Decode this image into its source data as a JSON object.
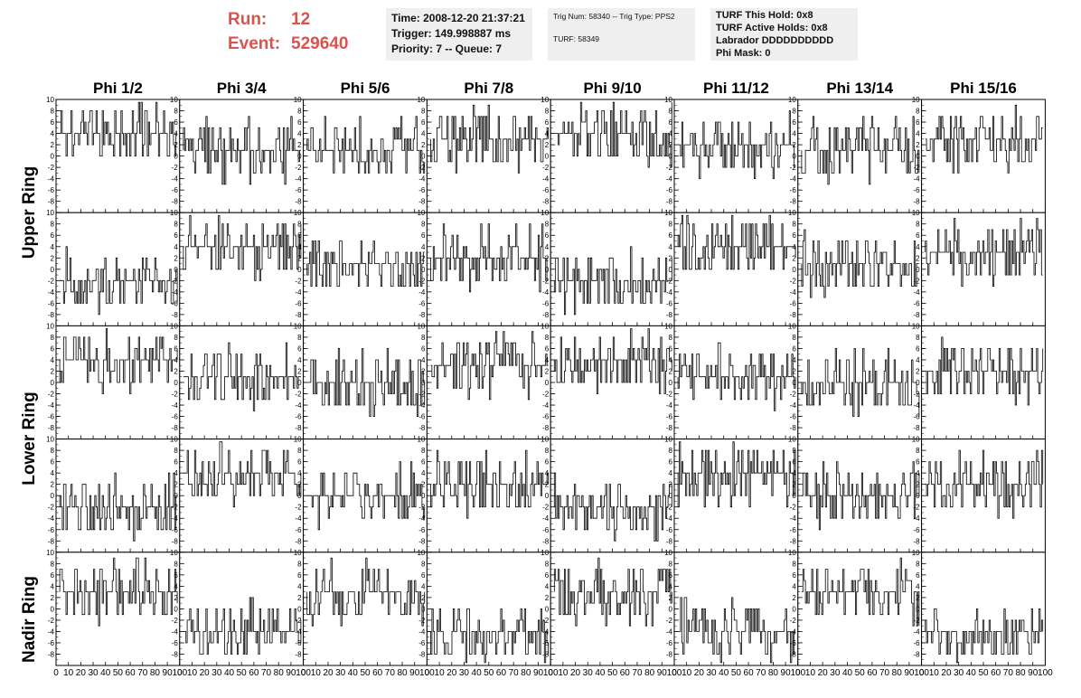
{
  "header": {
    "run_label": "Run:",
    "run_value": "12",
    "event_label": "Event:",
    "event_value": "529640",
    "time": "Time: 2008-12-20 21:37:21",
    "trigger": "Trigger: 149.998887 ms",
    "priority": "Priority: 7 -- Queue: 7",
    "trig_num": "Trig Num: 58340 -- Trig Type: PPS2",
    "turf": "TURF: 58349",
    "turf_this_hold": "TURF This Hold: 0x8",
    "turf_active_holds": "TURF Active Holds: 0x8",
    "labrador": "Labrador DDDDDDDDDD",
    "phi_mask": "Phi Mask: 0"
  },
  "chart_data": {
    "type": "line",
    "columns": [
      "Phi 1/2",
      "Phi 3/4",
      "Phi 5/6",
      "Phi 7/8",
      "Phi 9/10",
      "Phi 11/12",
      "Phi 13/14",
      "Phi 15/16"
    ],
    "row_groups": [
      "Upper Ring",
      "Lower Ring",
      "Nadir Ring"
    ],
    "rows_per_panel_grid": 5,
    "xlim": [
      0,
      100
    ],
    "ylim": [
      -10,
      10
    ],
    "x_ticks": [
      0,
      10,
      20,
      30,
      40,
      50,
      60,
      70,
      80,
      90,
      100
    ],
    "x_tick_labels": [
      "0",
      "10",
      "20",
      "30",
      "40",
      "50",
      "60",
      "70",
      "80",
      "90",
      "100"
    ],
    "y_ticks": [
      -8,
      -6,
      -4,
      -2,
      0,
      2,
      4,
      6,
      8,
      10
    ],
    "y_tick_labels": [
      "-8",
      "-6",
      "-4",
      "-2",
      "0",
      "2",
      "4",
      "6",
      "8",
      "10"
    ],
    "trace_points": 95,
    "panel_baselines": [
      [
        4,
        1,
        1,
        3,
        4,
        2,
        1,
        3
      ],
      [
        -2,
        4,
        1,
        2,
        -2,
        4,
        1,
        3
      ],
      [
        4,
        1,
        0,
        3,
        4,
        1,
        0,
        2
      ],
      [
        -2,
        4,
        0,
        2,
        -2,
        4,
        0,
        2
      ],
      [
        3,
        -4,
        3,
        -4,
        3,
        -4,
        3,
        -4
      ]
    ]
  }
}
